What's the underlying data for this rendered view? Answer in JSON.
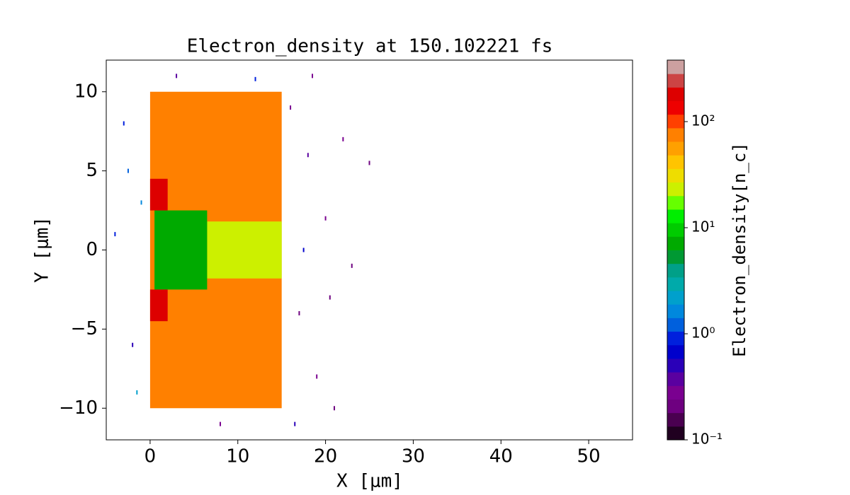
{
  "chart_data": {
    "type": "heatmap",
    "title": "Electron_density at 150.102221 fs",
    "x_label": "X [μm]",
    "y_label": "Y [μm]",
    "xlim": [
      -5,
      55
    ],
    "ylim": [
      -12,
      12
    ],
    "xticks": [
      0,
      10,
      20,
      30,
      40,
      50
    ],
    "yticks": [
      {
        "value": -10,
        "label": "−10"
      },
      {
        "value": -5,
        "label": "−5"
      },
      0,
      5,
      10
    ],
    "regions": [
      {
        "x": [
          0,
          15
        ],
        "y": [
          -10,
          10
        ],
        "value": 70
      },
      {
        "x": [
          6.5,
          15
        ],
        "y": [
          -1.8,
          1.8
        ],
        "value": 25
      },
      {
        "x": [
          0.5,
          6.5
        ],
        "y": [
          -2.5,
          2.5
        ],
        "value": 8
      },
      {
        "x": [
          0,
          2
        ],
        "y": [
          2.5,
          4.5
        ],
        "value": 200
      },
      {
        "x": [
          0,
          2
        ],
        "y": [
          -4.5,
          -2.5
        ],
        "value": 200
      }
    ],
    "points": {
      "x": [
        -3,
        -2,
        -1,
        -4,
        -1.5,
        16,
        17,
        18,
        19,
        20,
        21,
        22,
        25,
        16.5,
        18.5,
        17.5,
        3,
        8,
        12,
        -2.5,
        20.5,
        23
      ],
      "y": [
        8,
        -6,
        3,
        1,
        -9,
        9,
        -4,
        6,
        -8,
        2,
        -10,
        7,
        5.5,
        -11,
        11,
        0,
        11,
        -11,
        10.8,
        5,
        -3,
        -1
      ],
      "values": [
        1,
        0.5,
        1.5,
        0.8,
        2,
        0.3,
        0.2,
        0.4,
        0.25,
        0.3,
        0.2,
        0.3,
        0.2,
        0.5,
        0.3,
        0.6,
        0.4,
        0.3,
        1,
        1.2,
        0.2,
        0.2
      ]
    },
    "log_scale": true,
    "colorbar": {
      "label": "Electron_density[n_c]",
      "clim": [
        0.1,
        380
      ],
      "ticks": [
        {
          "value": 0.1,
          "label": "10⁻¹"
        },
        {
          "value": 1,
          "label": "10⁰"
        },
        {
          "value": 10,
          "label": "10¹"
        },
        {
          "value": 100,
          "label": "10²"
        }
      ],
      "colors": [
        "#200020",
        "#4a0050",
        "#6e0080",
        "#7a0090",
        "#5a00a0",
        "#2a00b8",
        "#0000cc",
        "#0020dd",
        "#0060dd",
        "#0088dd",
        "#00a0cc",
        "#00aaaa",
        "#00a088",
        "#009933",
        "#00aa00",
        "#00cc00",
        "#00ee00",
        "#66ff00",
        "#ccf000",
        "#eedd00",
        "#ffc400",
        "#ffa000",
        "#ff8000",
        "#ff4000",
        "#ee0000",
        "#dd0000",
        "#cc4444",
        "#cca0a0"
      ]
    }
  }
}
